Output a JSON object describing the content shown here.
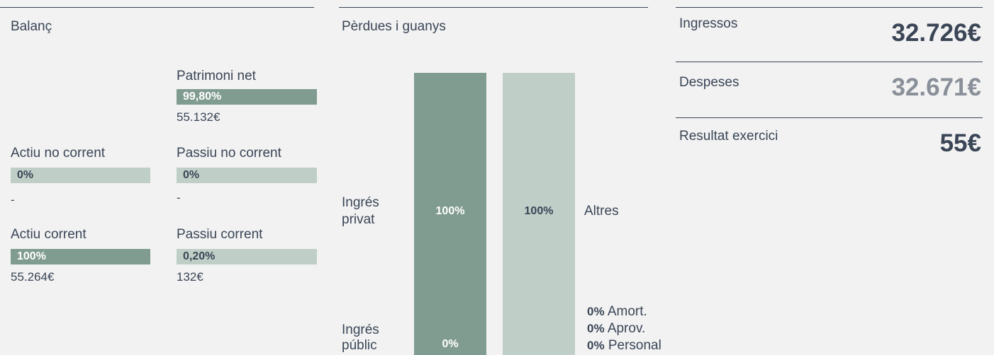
{
  "balance": {
    "title": "Balanç",
    "items": [
      {
        "label": "Patrimoni net",
        "percent": "99,80%",
        "amount": "55.132€"
      },
      {
        "label": "Actiu no corrent",
        "percent": "0%",
        "amount": "-"
      },
      {
        "label": "Passiu no corrent",
        "percent": "0%",
        "amount": "-"
      },
      {
        "label": "Actiu corrent",
        "percent": "100%",
        "amount": "55.264€"
      },
      {
        "label": "Passiu corrent",
        "percent": "0,20%",
        "amount": "132€"
      }
    ]
  },
  "pnl": {
    "title": "Pèrdues i guanys",
    "income": [
      {
        "label": "Ingrés privat",
        "percent": "100%"
      },
      {
        "label": "Ingrés públic",
        "percent": "0%"
      }
    ],
    "expenses": [
      {
        "label": "Altres",
        "percent": "100%"
      },
      {
        "label": "Amort.",
        "percent": "0%"
      },
      {
        "label": "Aprov.",
        "percent": "0%"
      },
      {
        "label": "Personal",
        "percent": "0%"
      }
    ]
  },
  "summary": [
    {
      "label": "Ingressos",
      "amount": "32.726€"
    },
    {
      "label": "Despeses",
      "amount": "32.671€"
    },
    {
      "label": "Resultat exercici",
      "amount": "55€"
    }
  ]
}
